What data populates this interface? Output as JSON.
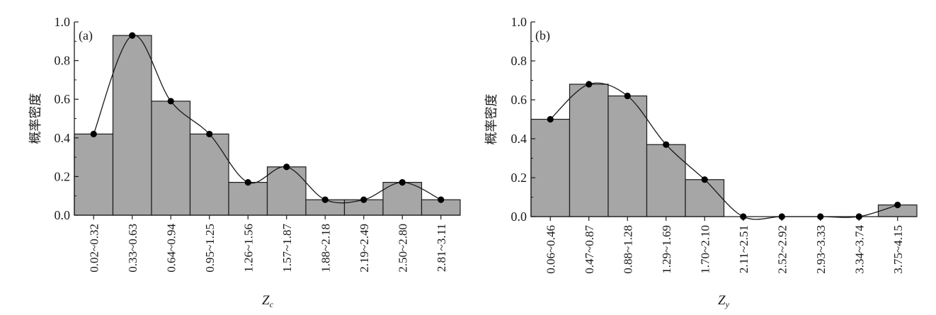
{
  "chart_data": [
    {
      "type": "bar",
      "panel_label": "(a)",
      "categories": [
        "0.02~0.32",
        "0.33~0.63",
        "0.64~0.94",
        "0.95~1.25",
        "1.26~1.56",
        "1.57~1.87",
        "1.88~2.18",
        "2.19~2.49",
        "2.50~2.80",
        "2.81~3.11"
      ],
      "values": [
        0.42,
        0.93,
        0.59,
        0.42,
        0.17,
        0.25,
        0.08,
        0.08,
        0.17,
        0.08
      ],
      "curve_points": [
        0.42,
        0.93,
        0.59,
        0.42,
        0.17,
        0.25,
        0.08,
        0.08,
        0.17,
        0.08
      ],
      "ylabel": "概率密度",
      "xlabel": "Z",
      "xlabel_sub": "c",
      "ylim": [
        0,
        1.0
      ],
      "yticks": [
        "0.0",
        "0.2",
        "0.4",
        "0.6",
        "0.8",
        "1.0"
      ],
      "bar_color": "#a6a6a6",
      "curve_color": "#1a1a1a",
      "grid": false
    },
    {
      "type": "bar",
      "panel_label": "(b)",
      "categories": [
        "0.06~0.46",
        "0.47~0.87",
        "0.88~1.28",
        "1.29~1.69",
        "1.70~2.10",
        "2.11~2.51",
        "2.52~2.92",
        "2.93~3.33",
        "3.34~3.74",
        "3.75~4.15"
      ],
      "values": [
        0.5,
        0.68,
        0.62,
        0.37,
        0.19,
        0.0,
        0.0,
        0.0,
        0.0,
        0.06
      ],
      "curve_points": [
        0.5,
        0.68,
        0.62,
        0.37,
        0.19,
        0.0,
        0.0,
        0.0,
        0.0,
        0.06
      ],
      "ylabel": "概率密度",
      "xlabel": "Z",
      "xlabel_sub": "y",
      "ylim": [
        0,
        1.0
      ],
      "yticks": [
        "0.0",
        "0.2",
        "0.4",
        "0.6",
        "0.8",
        "1.0"
      ],
      "bar_color": "#a6a6a6",
      "curve_color": "#1a1a1a",
      "grid": false
    }
  ]
}
